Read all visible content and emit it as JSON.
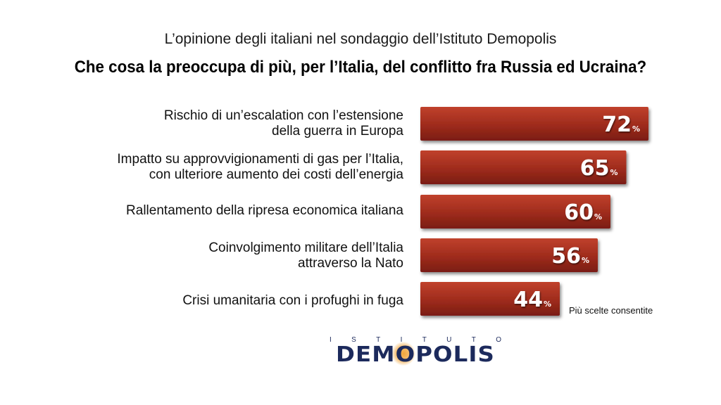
{
  "header": {
    "subtitle": "L’opinione degli italiani nel sondaggio dell’Istituto Demopolis",
    "title": "Che cosa la preoccupa di più, per l’Italia, del conflitto fra Russia ed Ucraina?"
  },
  "chart_data": {
    "type": "bar",
    "orientation": "horizontal",
    "categories": [
      "Rischio di un’escalation con l’estensione\ndella guerra in Europa",
      "Impatto su approvvigionamenti di gas per l’Italia,\ncon ulteriore aumento dei costi dell’energia",
      "Rallentamento della ripresa economica italiana",
      "Coinvolgimento militare dell’Italia\nattraverso la Nato",
      "Crisi umanitaria con i profughi in fuga"
    ],
    "values": [
      72,
      65,
      60,
      56,
      44
    ],
    "value_suffix": "%",
    "xlim": [
      0,
      100
    ],
    "grid": false,
    "legend": "none",
    "bar_color": "#9e2b1c",
    "bar_color_light": "#c0412c",
    "bar_color_dark": "#7a1d12"
  },
  "note": "Più scelte consentite",
  "logo": {
    "top_letters": [
      "I",
      "S",
      "T",
      "I",
      "T",
      "U",
      "T",
      "O"
    ],
    "name": "DEMOPOLIS",
    "color": "#1c2a5c",
    "glow_color": "#f0a53a"
  }
}
